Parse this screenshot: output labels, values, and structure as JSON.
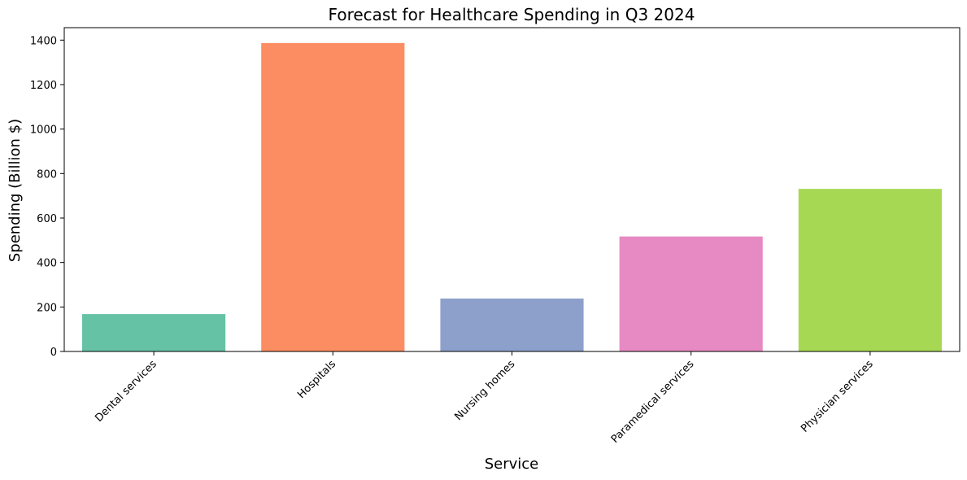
{
  "chart_data": {
    "type": "bar",
    "title": "Forecast for Healthcare Spending in Q3 2024",
    "xlabel": "Service",
    "ylabel": "Spending (Billion $)",
    "categories": [
      "Dental services",
      "Hospitals",
      "Nursing homes",
      "Paramedical services",
      "Physician services"
    ],
    "values": [
      168,
      1387,
      238,
      517,
      731
    ],
    "colors": [
      "#66c2a5",
      "#fc8d62",
      "#8da0cb",
      "#e78ac3",
      "#a6d854"
    ],
    "ylim": [
      0,
      1456
    ],
    "yticks": [
      0,
      200,
      400,
      600,
      800,
      1000,
      1200,
      1400
    ],
    "x_tick_rotation_deg": 45,
    "grid": false,
    "legend": false
  }
}
